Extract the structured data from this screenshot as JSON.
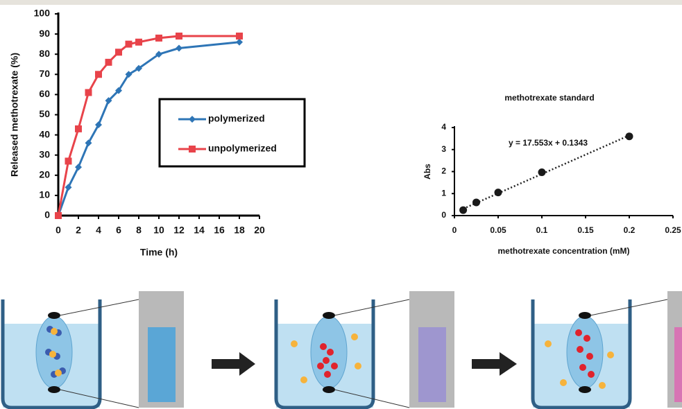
{
  "chart_data": [
    {
      "type": "line",
      "y_label": "Released methotrexate (%)",
      "x_label": "Time (h)",
      "x": [
        0,
        1,
        2,
        3,
        4,
        5,
        6,
        7,
        8,
        10,
        12,
        18
      ],
      "series": [
        {
          "name": "polymerized",
          "color": "#2e75b6",
          "marker": "diamond",
          "values": [
            0,
            14,
            24,
            36,
            45,
            57,
            62,
            70,
            73,
            80,
            83,
            86
          ]
        },
        {
          "name": "unpolymerized",
          "color": "#e8434a",
          "marker": "square",
          "values": [
            0,
            27,
            43,
            61,
            70,
            76,
            81,
            85,
            86,
            88,
            89,
            89
          ]
        }
      ],
      "xlim": [
        0,
        20
      ],
      "xticks": [
        0,
        2,
        4,
        6,
        8,
        10,
        12,
        14,
        16,
        18,
        20
      ],
      "ylim": [
        0,
        100
      ],
      "yticks": [
        0,
        10,
        20,
        30,
        40,
        50,
        60,
        70,
        80,
        90,
        100
      ],
      "grid": false
    },
    {
      "type": "scatter",
      "title": "methotrexate standard",
      "y_label": "Abs",
      "x_label": "methotrexate concentration (mM)",
      "x": [
        0.01,
        0.025,
        0.05,
        0.1,
        0.2
      ],
      "values": [
        0.25,
        0.6,
        1.05,
        1.97,
        3.6
      ],
      "color": "#1a1a1a",
      "trendline": {
        "slope": 17.553,
        "intercept": 0.1343,
        "label": "y = 17.553x + 0.1343"
      },
      "xlim": [
        0,
        0.25
      ],
      "xticks": [
        0,
        0.05,
        0.1,
        0.15,
        0.2,
        0.25
      ],
      "ylim": [
        0,
        4
      ],
      "yticks": [
        0,
        1,
        2,
        3,
        4
      ],
      "grid": false
    }
  ]
}
